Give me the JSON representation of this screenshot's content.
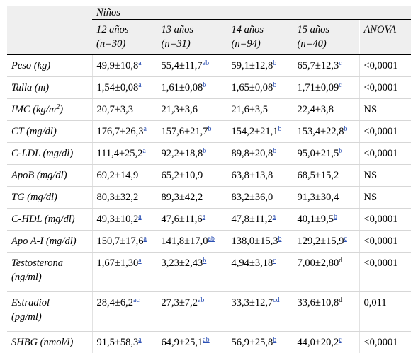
{
  "header": {
    "group": "Niños",
    "columns": [
      {
        "line1": "12 años",
        "line2": "(n=30)"
      },
      {
        "line1": "13 años",
        "line2": "(n=31)"
      },
      {
        "line1": "14 años",
        "line2": "(n=94)"
      },
      {
        "line1": "15 años",
        "line2": "(n=40)"
      }
    ],
    "anova": "ANOVA"
  },
  "rows": [
    {
      "label": "Peso (kg)",
      "cells": [
        [
          "49,9±10,8",
          "a",
          true
        ],
        [
          "55,4±11,7",
          "ab",
          true
        ],
        [
          "59,1±12,8",
          "b",
          true
        ],
        [
          "65,7±12,3",
          "c",
          true
        ]
      ],
      "anova": "<0,0001"
    },
    {
      "label": "Talla (m)",
      "cells": [
        [
          "1,54±0,08",
          "a",
          true
        ],
        [
          "1,61±0,08",
          "b",
          true
        ],
        [
          "1,65±0,08",
          "b",
          true
        ],
        [
          "1,71±0,09",
          "c",
          true
        ]
      ],
      "anova": "<0,0001"
    },
    {
      "label": "IMC (kg/m",
      "label_sup": "2",
      "label_tail": ")",
      "cells": [
        [
          "20,7±3,3",
          "",
          false
        ],
        [
          "21,3±3,6",
          "",
          false
        ],
        [
          "21,6±3,5",
          "",
          false
        ],
        [
          "22,4±3,8",
          "",
          false
        ]
      ],
      "anova": "NS"
    },
    {
      "label": "CT (mg/dl)",
      "cells": [
        [
          "176,7±26,3",
          "a",
          true
        ],
        [
          "157,6±21,7",
          "b",
          true
        ],
        [
          "154,2±21,1",
          "b",
          true
        ],
        [
          "153,4±22,8",
          "b",
          true
        ]
      ],
      "anova": "<0,0001"
    },
    {
      "label": "C-LDL (mg/dl)",
      "cells": [
        [
          "111,4±25,2",
          "a",
          true
        ],
        [
          "92,2±18,8",
          "b",
          true
        ],
        [
          "89,8±20,8",
          "b",
          true
        ],
        [
          "95,0±21,5",
          "b",
          true
        ]
      ],
      "anova": "<0,0001"
    },
    {
      "label": "ApoB (mg/dl)",
      "cells": [
        [
          "69,2±14,9",
          "",
          false
        ],
        [
          "65,2±10,9",
          "",
          false
        ],
        [
          "63,8±13,8",
          "",
          false
        ],
        [
          "68,5±15,2",
          "",
          false
        ]
      ],
      "anova": "NS"
    },
    {
      "label": "TG (mg/dl)",
      "cells": [
        [
          "80,3±32,2",
          "",
          false
        ],
        [
          "89,3±42,2",
          "",
          false
        ],
        [
          "83,2±36,0",
          "",
          false
        ],
        [
          "91,3±30,4",
          "",
          false
        ]
      ],
      "anova": "NS"
    },
    {
      "label": "C-HDL (mg/dl)",
      "cells": [
        [
          "49,3±10,2",
          "a",
          true
        ],
        [
          "47,6±11,6",
          "a",
          true
        ],
        [
          "47,8±11,2",
          "a",
          true
        ],
        [
          "40,1±9,5",
          "b",
          true
        ]
      ],
      "anova": "<0,0001"
    },
    {
      "label": "Apo A-I (mg/dl)",
      "cells": [
        [
          "150,7±17,6",
          "a",
          true
        ],
        [
          "141,8±17,0",
          "ab",
          true
        ],
        [
          "138,0±15,3",
          "b",
          true
        ],
        [
          "129,2±15,9",
          "c",
          true
        ]
      ],
      "anova": "<0,0001"
    },
    {
      "label": "Testosterona",
      "label2": "(ng/ml)",
      "tall": true,
      "cells": [
        [
          "1,67±1,30",
          "a",
          true
        ],
        [
          "3,23±2,43",
          "b",
          true
        ],
        [
          "4,94±3,18",
          "c",
          true
        ],
        [
          "7,00±2,80",
          "d",
          false
        ]
      ],
      "anova": "<0,0001"
    },
    {
      "label": "Estradiol",
      "label2": "(pg/ml)",
      "tall": true,
      "cells": [
        [
          "28,4±6,2",
          "ac",
          true
        ],
        [
          "27,3±7,2",
          "ab",
          true
        ],
        [
          "33,3±12,7",
          "cd",
          true
        ],
        [
          "33,6±10,8",
          "d",
          false
        ]
      ],
      "anova": "0,011"
    },
    {
      "label": "SHBG (nmol/l)",
      "cells": [
        [
          "91,5±58,3",
          "a",
          true
        ],
        [
          "64,9±25,1",
          "ab",
          true
        ],
        [
          "56,9±25,8",
          "b",
          true
        ],
        [
          "44,0±20,2",
          "c",
          true
        ]
      ],
      "anova": "<0,0001"
    }
  ]
}
